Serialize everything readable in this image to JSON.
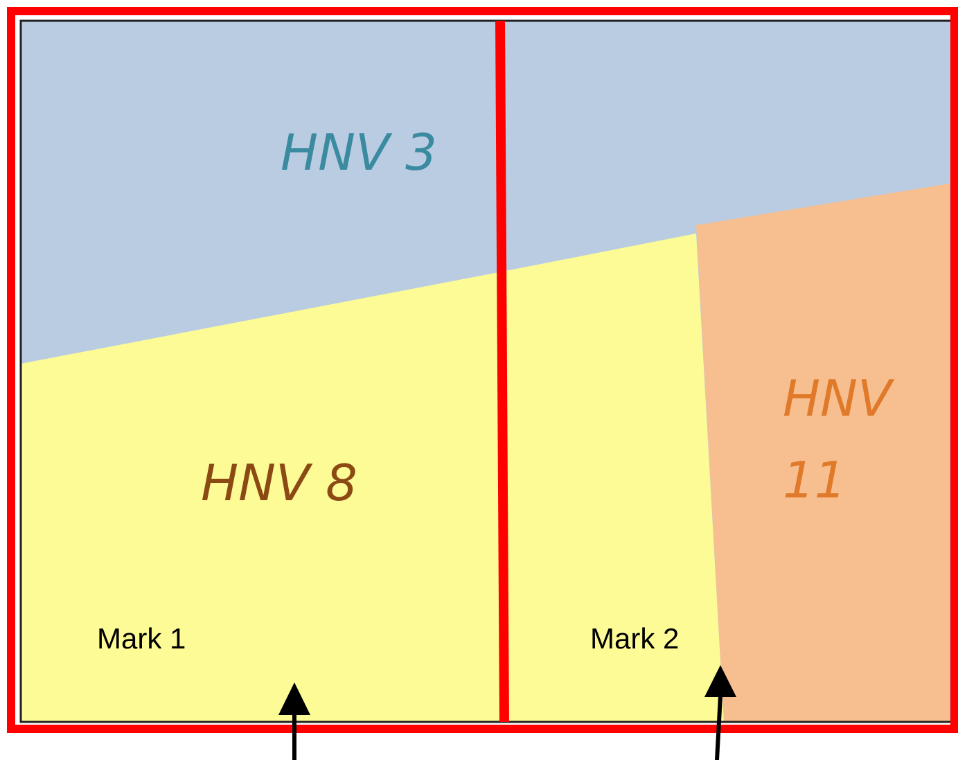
{
  "regions": [
    {
      "label": "HNV 3"
    },
    {
      "label": "HNV 8"
    },
    {
      "label_lines": [
        "HNV",
        "11"
      ]
    }
  ],
  "marks": [
    {
      "label": "Mark 1"
    },
    {
      "label": "Mark 2"
    }
  ]
}
